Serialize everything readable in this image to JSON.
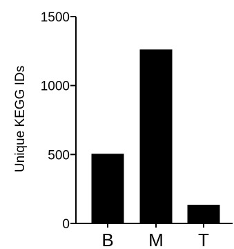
{
  "chart_data": {
    "type": "bar",
    "title": "",
    "xlabel": "",
    "ylabel": "Unique KEGG IDs",
    "categories": [
      "B",
      "M",
      "T"
    ],
    "values": [
      505,
      1262,
      135
    ],
    "ylim": [
      0,
      1500
    ],
    "yticks": [
      0,
      500,
      1000,
      1500
    ],
    "ytick_labels": [
      "0",
      "500",
      "1000",
      "1500"
    ],
    "grid": false,
    "legend": "none",
    "colors": {
      "bar": "#000000",
      "axis": "#000000"
    }
  }
}
